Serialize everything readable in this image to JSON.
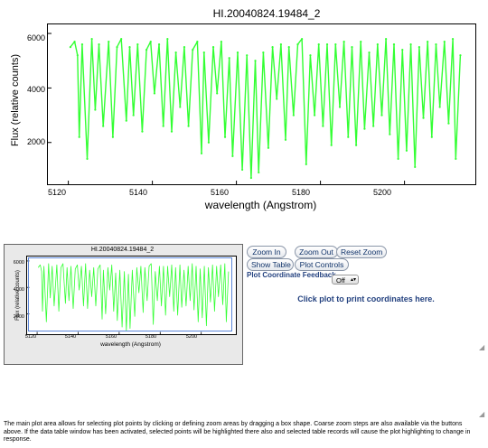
{
  "main_plot": {
    "title": "HI.20040824.19484_2",
    "ylabel": "Flux (relative counts)",
    "xlabel": "wavelength (Angstrom)",
    "yticks": [
      "2000",
      "4000",
      "6000"
    ],
    "xticks": [
      "5120",
      "5140",
      "5160",
      "5180",
      "5200"
    ],
    "line_color": "#33ff33"
  },
  "thumbnail": {
    "title": "HI.20040824.19484_2",
    "ylabel": "Flux (relative counts)",
    "xlabel": "wavelength (Angstrom)",
    "yticks": [
      "2000",
      "4000",
      "6000"
    ],
    "xticks": [
      "5120",
      "5140",
      "5160",
      "5180",
      "5200"
    ],
    "selection_color": "#5b86d9"
  },
  "controls": {
    "zoom_in": "Zoom In",
    "zoom_out": "Zoom Out",
    "reset_zoom": "Reset Zoom",
    "show_table": "Show Table",
    "plot_controls": "Plot Controls",
    "feedback_label": "Plot Coordinate Feedback",
    "feedback_value": "Off",
    "print_hint": "Click plot to print coordinates here."
  },
  "help_text": "The main plot area allows for selecting plot points by clicking or defining zoom areas by dragging a box shape. Coarse zoom steps are also available via the buttons above. If the data table window has been activated, selected points will be highlighted there also and selected table records will cause the plot highlighting to change in response.",
  "chart_data": {
    "type": "line",
    "title": "HI.20040824.19484_2",
    "xlabel": "wavelength (Angstrom)",
    "ylabel": "Flux (relative counts)",
    "xlim": [
      5116,
      5216
    ],
    "ylim": [
      600,
      6200
    ],
    "series": [
      {
        "x": [
          5120.5,
          5121.5,
          5122.2,
          5122.6,
          5123.3,
          5124.5,
          5125.6,
          5126.4,
          5127.3,
          5128.3,
          5129.6,
          5130.6,
          5131.6,
          5132.6,
          5133.8,
          5134.6,
          5135.5,
          5136.5,
          5137.6,
          5138.6,
          5139.6,
          5140.5,
          5141.6,
          5142.6,
          5143.6,
          5144.6,
          5145.6,
          5146.6,
          5147.6,
          5148.6,
          5149.6,
          5150.7,
          5151.7,
          5152.3,
          5153.4,
          5154.5,
          5155.4,
          5156.4,
          5157.3,
          5158.3,
          5159.1,
          5160.3,
          5161.4,
          5162.5,
          5163.5,
          5164.5,
          5165.3,
          5166.4,
          5167.6,
          5168.6,
          5169.6,
          5170.6,
          5171.7,
          5172.5,
          5173.6,
          5174.6,
          5175.6,
          5176.6,
          5177.6,
          5178.6,
          5179.6,
          5180.6,
          5181.6,
          5182.6,
          5183.6,
          5184.6,
          5185.6,
          5186.6,
          5187.5,
          5188.5,
          5189.6,
          5190.5,
          5191.6,
          5192.6,
          5193.6,
          5194.6,
          5195.6,
          5196.5,
          5197.5,
          5198.5,
          5199.5,
          5200.5,
          5201.5,
          5202.5,
          5203.5,
          5204.5,
          5205.5,
          5206.5,
          5207.5,
          5208.4,
          5209.5,
          5210.5,
          5211.5,
          5212.2,
          5213.3
        ],
        "y": [
          5500,
          5700,
          5200,
          2200,
          5600,
          1400,
          5800,
          3200,
          5600,
          2600,
          5700,
          2200,
          5500,
          5800,
          2800,
          5500,
          3000,
          5600,
          2400,
          5400,
          5700,
          3800,
          5600,
          2600,
          5800,
          2400,
          5300,
          3300,
          5500,
          2600,
          5400,
          5700,
          1600,
          5300,
          2000,
          5500,
          3800,
          5700,
          2200,
          5100,
          1500,
          5300,
          1000,
          5200,
          700,
          5000,
          900,
          5300,
          1800,
          5500,
          3600,
          5600,
          2100,
          5500,
          3000,
          5600,
          5800,
          1200,
          5200,
          3000,
          5600,
          2600,
          5600,
          1900,
          5600,
          3300,
          5700,
          2200,
          5500,
          1900,
          5700,
          2500,
          5300,
          2600,
          5600,
          3000,
          5800,
          2300,
          5600,
          1400,
          5400,
          1700,
          5600,
          1100,
          5500,
          2900,
          5700,
          2200,
          5600,
          3300,
          5700,
          2700,
          5800,
          1400,
          5200
        ]
      }
    ]
  }
}
